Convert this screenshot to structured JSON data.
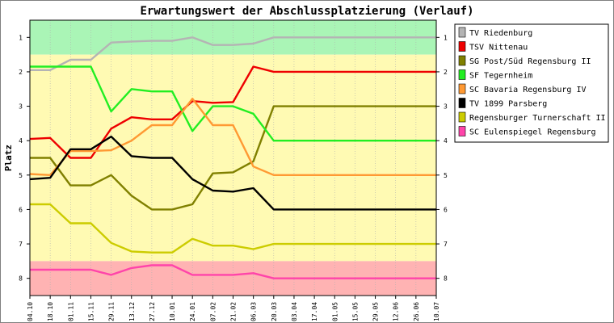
{
  "chart_data": {
    "type": "line",
    "title": "Erwartungswert der Abschlussplatzierung (Verlauf)",
    "ylabel": "Platz",
    "ylim": [
      0.5,
      8.5
    ],
    "y_inverted": true,
    "y_ticks": [
      "1",
      "2",
      "3",
      "4",
      "5",
      "6",
      "7",
      "8"
    ],
    "x": [
      "04.10",
      "18.10",
      "01.11",
      "15.11",
      "29.11",
      "13.12",
      "27.12",
      "10.01",
      "24.01",
      "07.02",
      "21.02",
      "06.03",
      "20.03",
      "03.04",
      "17.04",
      "01.05",
      "15.05",
      "29.05",
      "12.06",
      "26.06",
      "10.07"
    ],
    "background_bands": [
      {
        "from": 0.5,
        "to": 1.5,
        "color": "#aaf5b6"
      },
      {
        "from": 1.5,
        "to": 7.5,
        "color": "#fffab3"
      },
      {
        "from": 7.5,
        "to": 8.5,
        "color": "#ffb3b3"
      }
    ],
    "legend_position": "right",
    "series": [
      {
        "name": "TV Riedenburg",
        "color": "#b4b4b4",
        "values": [
          1.95,
          1.95,
          1.65,
          1.65,
          1.15,
          1.12,
          1.1,
          1.1,
          1.0,
          1.22,
          1.22,
          1.18,
          1.0,
          1.0,
          1.0,
          1.0,
          1.0,
          1.0,
          1.0,
          1.0,
          1.0
        ]
      },
      {
        "name": "TSV Nittenau",
        "color": "#ee0000",
        "values": [
          3.95,
          3.92,
          4.5,
          4.5,
          3.65,
          3.32,
          3.38,
          3.38,
          2.85,
          2.9,
          2.88,
          1.85,
          2.0,
          2.0,
          2.0,
          2.0,
          2.0,
          2.0,
          2.0,
          2.0,
          2.0
        ]
      },
      {
        "name": "SG Post/Süd Regensburg II",
        "color": "#808000",
        "values": [
          4.5,
          4.5,
          5.3,
          5.3,
          5.0,
          5.6,
          6.0,
          6.0,
          5.85,
          4.95,
          4.92,
          4.6,
          3.0,
          3.0,
          3.0,
          3.0,
          3.0,
          3.0,
          3.0,
          3.0,
          3.0
        ]
      },
      {
        "name": "SF Tegernheim",
        "color": "#22ee22",
        "values": [
          1.85,
          1.85,
          1.85,
          1.85,
          3.15,
          2.5,
          2.57,
          2.57,
          3.72,
          3.0,
          3.0,
          3.22,
          4.0,
          4.0,
          4.0,
          4.0,
          4.0,
          4.0,
          4.0,
          4.0,
          4.0
        ]
      },
      {
        "name": "SC Bavaria Regensburg IV",
        "color": "#ff9933",
        "values": [
          4.97,
          5.0,
          4.3,
          4.3,
          4.28,
          4.0,
          3.55,
          3.55,
          2.78,
          3.55,
          3.55,
          4.75,
          5.0,
          5.0,
          5.0,
          5.0,
          5.0,
          5.0,
          5.0,
          5.0,
          5.0
        ]
      },
      {
        "name": "TV 1899 Parsberg",
        "color": "#000000",
        "values": [
          5.12,
          5.08,
          4.25,
          4.25,
          3.88,
          4.45,
          4.5,
          4.5,
          5.12,
          5.45,
          5.48,
          5.38,
          6.0,
          6.0,
          6.0,
          6.0,
          6.0,
          6.0,
          6.0,
          6.0,
          6.0
        ]
      },
      {
        "name": "Regensburger Turnerschaft II",
        "color": "#cccc00",
        "values": [
          5.85,
          5.85,
          6.4,
          6.4,
          6.97,
          7.22,
          7.25,
          7.25,
          6.85,
          7.05,
          7.05,
          7.15,
          7.0,
          7.0,
          7.0,
          7.0,
          7.0,
          7.0,
          7.0,
          7.0,
          7.0
        ]
      },
      {
        "name": "SC Eulenspiegel Regensburg",
        "color": "#ff44aa",
        "values": [
          7.75,
          7.75,
          7.75,
          7.75,
          7.9,
          7.7,
          7.62,
          7.62,
          7.9,
          7.9,
          7.9,
          7.85,
          8.0,
          8.0,
          8.0,
          8.0,
          8.0,
          8.0,
          8.0,
          8.0,
          8.0
        ]
      }
    ]
  }
}
